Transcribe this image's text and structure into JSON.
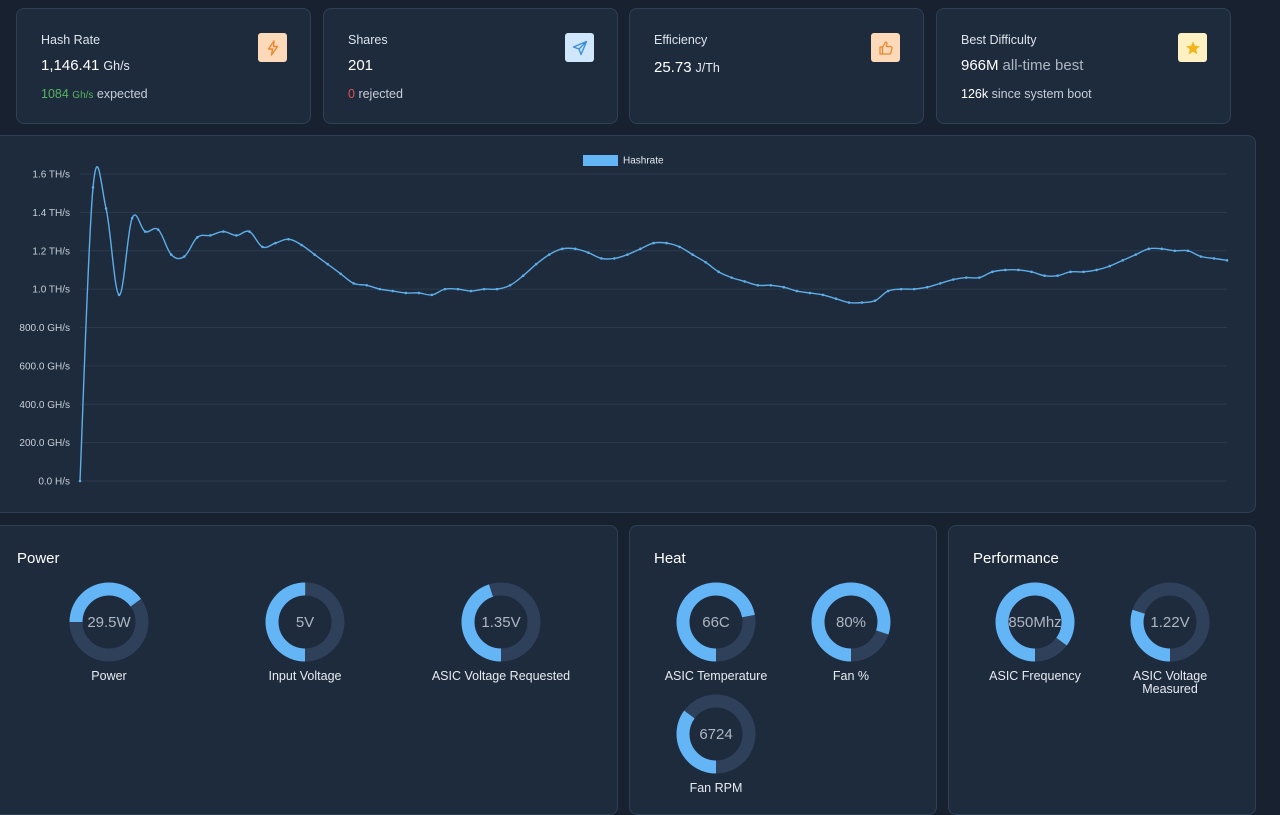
{
  "stats": [
    {
      "title": "Hash Rate",
      "value": "1,146.41",
      "unit": "Gh/s",
      "extra": "",
      "sub_value": "1084",
      "sub_unit": "Gh/s",
      "sub_text": "expected",
      "sub_color": "green",
      "icon": "lightning-icon",
      "icon_bg": "#fcd9b8",
      "icon_color": "#e8892f"
    },
    {
      "title": "Shares",
      "value": "201",
      "unit": "",
      "extra": "",
      "sub_value": "0",
      "sub_unit": "",
      "sub_text": "rejected",
      "sub_color": "red",
      "icon": "send-icon",
      "icon_bg": "#cfe6fb",
      "icon_color": "#3d8fd6"
    },
    {
      "title": "Efficiency",
      "value": "25.73",
      "unit": "J/Th",
      "extra": "",
      "sub_value": "",
      "sub_unit": "",
      "sub_text": "",
      "sub_color": "white",
      "icon": "thumbs-up-icon",
      "icon_bg": "#fcd9b8",
      "icon_color": "#e8892f"
    },
    {
      "title": "Best Difficulty",
      "value": "966M",
      "unit": "",
      "extra": "all-time best",
      "sub_value": "126k",
      "sub_unit": "",
      "sub_text": "since system boot",
      "sub_color": "white",
      "icon": "star-icon",
      "icon_bg": "#fdf1c4",
      "icon_color": "#f2b51e"
    }
  ],
  "chart_data": {
    "type": "line",
    "legend": [
      "Hashrate"
    ],
    "legend_position": "top-center",
    "series": [
      {
        "name": "Hashrate",
        "color": "#5daee8",
        "unit": "TH/s",
        "values": [
          0.0,
          1.53,
          1.42,
          0.97,
          1.37,
          1.3,
          1.31,
          1.18,
          1.17,
          1.27,
          1.28,
          1.3,
          1.28,
          1.3,
          1.22,
          1.24,
          1.26,
          1.23,
          1.18,
          1.13,
          1.08,
          1.03,
          1.02,
          1.0,
          0.99,
          0.98,
          0.98,
          0.97,
          1.0,
          1.0,
          0.99,
          1.0,
          1.0,
          1.02,
          1.07,
          1.13,
          1.18,
          1.21,
          1.21,
          1.19,
          1.16,
          1.16,
          1.18,
          1.21,
          1.24,
          1.24,
          1.22,
          1.18,
          1.14,
          1.09,
          1.06,
          1.04,
          1.02,
          1.02,
          1.01,
          0.99,
          0.98,
          0.97,
          0.95,
          0.93,
          0.93,
          0.94,
          0.99,
          1.0,
          1.0,
          1.01,
          1.03,
          1.05,
          1.06,
          1.06,
          1.09,
          1.1,
          1.1,
          1.09,
          1.07,
          1.07,
          1.09,
          1.09,
          1.1,
          1.12,
          1.15,
          1.18,
          1.21,
          1.21,
          1.2,
          1.2,
          1.17,
          1.16,
          1.15
        ]
      }
    ],
    "y_ticks": [
      "1.6 TH/s",
      "1.4 TH/s",
      "1.2 TH/s",
      "1.0 TH/s",
      "800.0 GH/s",
      "600.0 GH/s",
      "400.0 GH/s",
      "200.0 GH/s",
      "0.0 H/s"
    ],
    "ylim": [
      0,
      1.6
    ],
    "grid": true
  },
  "panels": {
    "power": {
      "title": "Power",
      "gauges": [
        {
          "value": "29.5W",
          "label": "Power",
          "fraction": 0.4,
          "start": 0.75
        },
        {
          "value": "5V",
          "label": "Input Voltage",
          "fraction": 0.5,
          "start": 0.5
        },
        {
          "value": "1.35V",
          "label": "ASIC Voltage Requested",
          "fraction": 0.45,
          "start": 0.5
        }
      ]
    },
    "heat": {
      "title": "Heat",
      "gauges": [
        {
          "value": "66C",
          "label": "ASIC Temperature",
          "fraction": 0.72,
          "start": 0.5
        },
        {
          "value": "80%",
          "label": "Fan %",
          "fraction": 0.8,
          "start": 0.5
        },
        {
          "value": "6724",
          "label": "Fan RPM",
          "fraction": 0.35,
          "start": 0.5
        }
      ]
    },
    "performance": {
      "title": "Performance",
      "gauges": [
        {
          "value": "850Mhz",
          "label": "ASIC Frequency",
          "fraction": 0.85,
          "start": 0.5
        },
        {
          "value": "1.22V",
          "label": "ASIC Voltage Measured",
          "fraction": 0.3,
          "start": 0.5
        }
      ]
    }
  },
  "colors": {
    "accent": "#64b5f6",
    "track": "#2f405a",
    "line": "#5daee8"
  }
}
